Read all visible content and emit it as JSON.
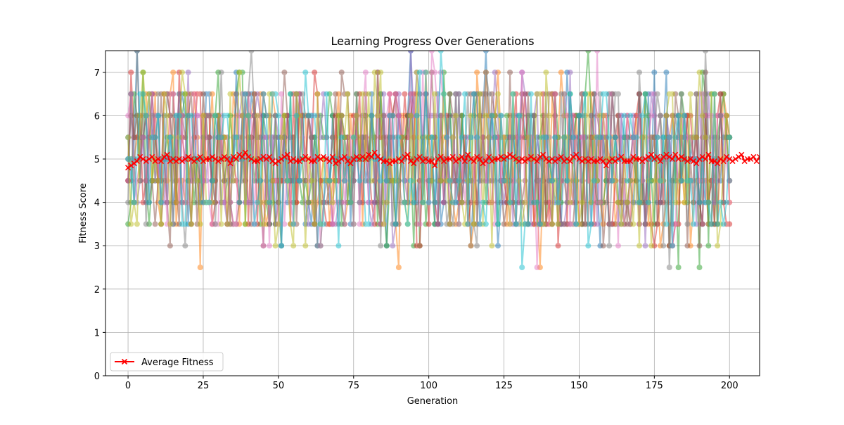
{
  "chart_data": {
    "type": "line",
    "title": "Learning Progress Over Generations",
    "xlabel": "Generation",
    "ylabel": "Fitness Score",
    "xlim": [
      -7.5,
      210
    ],
    "ylim": [
      0,
      7.5
    ],
    "xticks": [
      0,
      25,
      50,
      75,
      100,
      125,
      150,
      175,
      200
    ],
    "yticks": [
      0,
      1,
      2,
      3,
      4,
      5,
      6,
      7
    ],
    "grid": true,
    "legend": {
      "placement": "lower-left",
      "entries": [
        "Average Fitness"
      ]
    },
    "individual_series": {
      "count": 10,
      "generations": [
        0,
        200
      ],
      "markers": "circle",
      "alpha": 0.5,
      "colors": [
        "#1f77b4",
        "#ff7f0e",
        "#2ca02c",
        "#d62728",
        "#9467bd",
        "#8c564b",
        "#e377c2",
        "#7f7f7f",
        "#bcbd22",
        "#17becf"
      ],
      "value_set": [
        2.5,
        3.0,
        3.5,
        4.0,
        4.5,
        5.0,
        5.5,
        6.0,
        6.5,
        7.0,
        7.5
      ],
      "typical_range": [
        3.5,
        6.5
      ]
    },
    "series": [
      {
        "name": "Average Fitness",
        "color": "#ff0000",
        "marker": "x",
        "x_start": 0,
        "x_step": 1,
        "values": [
          4.8,
          4.85,
          4.9,
          4.95,
          5.05,
          5.0,
          4.95,
          5.0,
          5.05,
          4.95,
          5.0,
          4.95,
          5.05,
          5.1,
          4.95,
          5.0,
          4.95,
          5.0,
          4.95,
          5.0,
          5.05,
          5.0,
          4.95,
          5.0,
          5.05,
          4.95,
          5.0,
          5.0,
          5.05,
          5.0,
          4.95,
          5.0,
          5.05,
          5.0,
          4.9,
          5.05,
          5.0,
          5.1,
          5.05,
          5.15,
          5.05,
          5.0,
          4.95,
          4.95,
          5.0,
          5.05,
          5.0,
          5.05,
          4.95,
          4.9,
          4.95,
          5.0,
          5.05,
          5.1,
          4.95,
          5.0,
          4.95,
          4.95,
          5.0,
          5.05,
          5.0,
          4.95,
          4.95,
          5.05,
          5.0,
          5.05,
          5.0,
          4.95,
          5.05,
          4.9,
          4.95,
          5.0,
          5.05,
          4.95,
          4.9,
          5.0,
          5.05,
          5.0,
          5.05,
          5.0,
          5.1,
          5.05,
          5.15,
          5.05,
          5.0,
          4.95,
          4.95,
          4.9,
          4.95,
          4.95,
          5.0,
          4.95,
          5.05,
          5.1,
          4.95,
          4.9,
          5.0,
          5.05,
          4.95,
          5.0,
          4.95,
          4.95,
          4.85,
          5.0,
          5.05,
          4.95,
          5.0,
          5.0,
          5.05,
          4.95,
          5.0,
          5.05,
          4.95,
          5.1,
          5.0,
          4.95,
          5.05,
          5.0,
          4.9,
          4.95,
          5.05,
          4.95,
          5.0,
          5.0,
          5.05,
          5.0,
          5.05,
          5.1,
          5.05,
          5.0,
          4.95,
          5.0,
          4.95,
          5.0,
          5.05,
          5.0,
          4.95,
          5.05,
          5.1,
          5.0,
          4.95,
          5.0,
          4.95,
          5.0,
          5.05,
          4.95,
          5.0,
          4.95,
          5.05,
          5.1,
          5.0,
          4.95,
          5.0,
          4.95,
          5.0,
          4.95,
          4.95,
          5.0,
          4.95,
          4.85,
          4.95,
          5.0,
          4.95,
          5.0,
          5.05,
          4.95,
          4.95,
          4.95,
          5.05,
          5.0,
          5.0,
          4.95,
          5.0,
          5.05,
          5.1,
          5.0,
          5.05,
          4.95,
          5.05,
          5.1,
          5.05,
          5.0,
          5.1,
          5.0,
          5.05,
          5.0,
          4.95,
          5.0,
          4.95,
          4.9,
          5.0,
          5.05,
          5.0,
          5.1,
          4.95,
          4.95,
          4.9,
          5.0,
          4.95,
          5.05,
          5.0,
          4.95,
          5.0,
          5.05,
          5.1,
          4.95,
          5.0,
          5.0,
          5.05,
          4.95,
          5.05,
          5.1,
          5.0
        ]
      }
    ]
  }
}
